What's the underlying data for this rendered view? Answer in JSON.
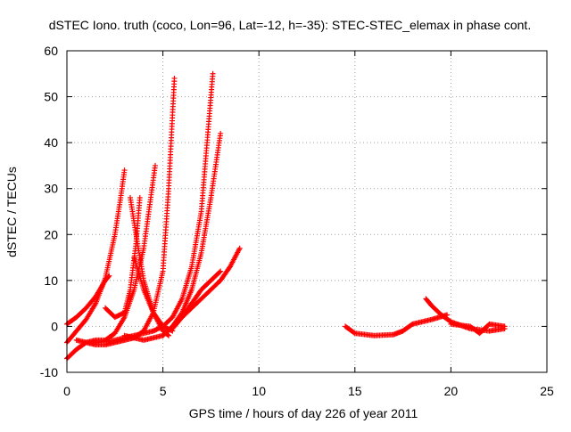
{
  "chart_data": {
    "type": "scatter",
    "title": "dSTEC Iono. truth (coco, Lon=96, Lat=-12, h=-35): STEC-STEC_elemax in phase cont.",
    "xlabel": "GPS time / hours of day 226 of year 2011",
    "ylabel": "dSTEC  / TECUs",
    "xlim": [
      0,
      25
    ],
    "ylim": [
      -10,
      60
    ],
    "xticks": [
      0,
      5,
      10,
      15,
      20,
      25
    ],
    "yticks": [
      -10,
      0,
      10,
      20,
      30,
      40,
      50,
      60
    ],
    "grid": true,
    "marker": "plus",
    "color": "#ff0000",
    "series": [
      {
        "x": [
          0.0,
          0.5,
          1.0,
          1.5,
          2.0,
          2.2
        ],
        "y": [
          0.5,
          2.0,
          4.0,
          6.5,
          10.0,
          11.0
        ]
      },
      {
        "x": [
          0.0,
          0.5,
          1.0,
          1.5,
          2.0,
          2.5,
          2.8,
          3.0
        ],
        "y": [
          -3.5,
          -1.0,
          1.5,
          5.0,
          10.5,
          20.0,
          28.0,
          34.0
        ]
      },
      {
        "x": [
          0.0,
          0.5,
          1.0,
          1.5,
          2.0,
          2.5,
          3.0,
          3.5,
          4.0,
          4.3,
          4.6
        ],
        "y": [
          -7.0,
          -5.0,
          -3.5,
          -3.0,
          -3.0,
          -1.5,
          2.0,
          8.0,
          17.0,
          26.0,
          35.0
        ]
      },
      {
        "x": [
          0.5,
          1.0,
          1.5,
          2.0,
          2.5,
          3.0,
          3.5,
          4.0,
          4.5,
          5.0,
          5.3,
          5.6
        ],
        "y": [
          -3.0,
          -3.5,
          -4.0,
          -4.0,
          -3.5,
          -3.0,
          -2.5,
          -1.0,
          3.0,
          12.0,
          30.0,
          54.0
        ]
      },
      {
        "x": [
          2.0,
          2.5,
          3.0,
          3.3,
          3.6,
          3.8
        ],
        "y": [
          4.0,
          2.0,
          3.0,
          8.0,
          18.0,
          28.0
        ]
      },
      {
        "x": [
          3.3,
          3.6,
          4.0,
          4.5,
          5.0,
          5.3
        ],
        "y": [
          28.0,
          20.0,
          10.0,
          3.0,
          -1.0,
          -2.0
        ]
      },
      {
        "x": [
          3.5,
          4.0,
          4.5,
          5.0,
          5.5
        ],
        "y": [
          15.0,
          8.0,
          3.0,
          0.0,
          -1.0
        ]
      },
      {
        "x": [
          1.5,
          2.5,
          3.5,
          4.5,
          5.0,
          5.5,
          6.0,
          6.5,
          7.0,
          7.3,
          7.6
        ],
        "y": [
          -3.5,
          -3.0,
          -2.0,
          -1.0,
          0.0,
          2.0,
          6.0,
          13.0,
          25.0,
          40.0,
          55.0
        ]
      },
      {
        "x": [
          3.0,
          4.0,
          5.0,
          5.5,
          6.0,
          6.5,
          7.0,
          7.5,
          8.0
        ],
        "y": [
          -2.0,
          -3.0,
          -2.0,
          0.0,
          3.0,
          8.0,
          16.0,
          28.0,
          42.0
        ]
      },
      {
        "x": [
          5.0,
          6.0,
          7.0,
          8.0,
          8.5,
          9.0
        ],
        "y": [
          -2.0,
          2.0,
          6.0,
          10.0,
          13.0,
          17.0
        ]
      },
      {
        "x": [
          5.5,
          6.0,
          6.5,
          7.0,
          7.5,
          8.0
        ],
        "y": [
          -0.5,
          2.0,
          5.0,
          8.0,
          10.0,
          12.0
        ]
      },
      {
        "x": [
          14.5,
          15.0,
          16.0,
          17.0,
          17.5,
          18.0,
          19.0,
          19.8
        ],
        "y": [
          0.0,
          -1.5,
          -2.0,
          -1.8,
          -1.0,
          0.5,
          1.5,
          2.5
        ]
      },
      {
        "x": [
          18.7,
          19.0,
          19.5,
          20.0,
          21.0,
          22.0,
          22.8
        ],
        "y": [
          6.0,
          4.5,
          2.5,
          1.0,
          -0.5,
          -1.0,
          -0.5
        ]
      },
      {
        "x": [
          20.0,
          21.0,
          21.5,
          22.0,
          22.8
        ],
        "y": [
          0.5,
          0.0,
          -1.5,
          0.5,
          0.0
        ]
      }
    ]
  }
}
